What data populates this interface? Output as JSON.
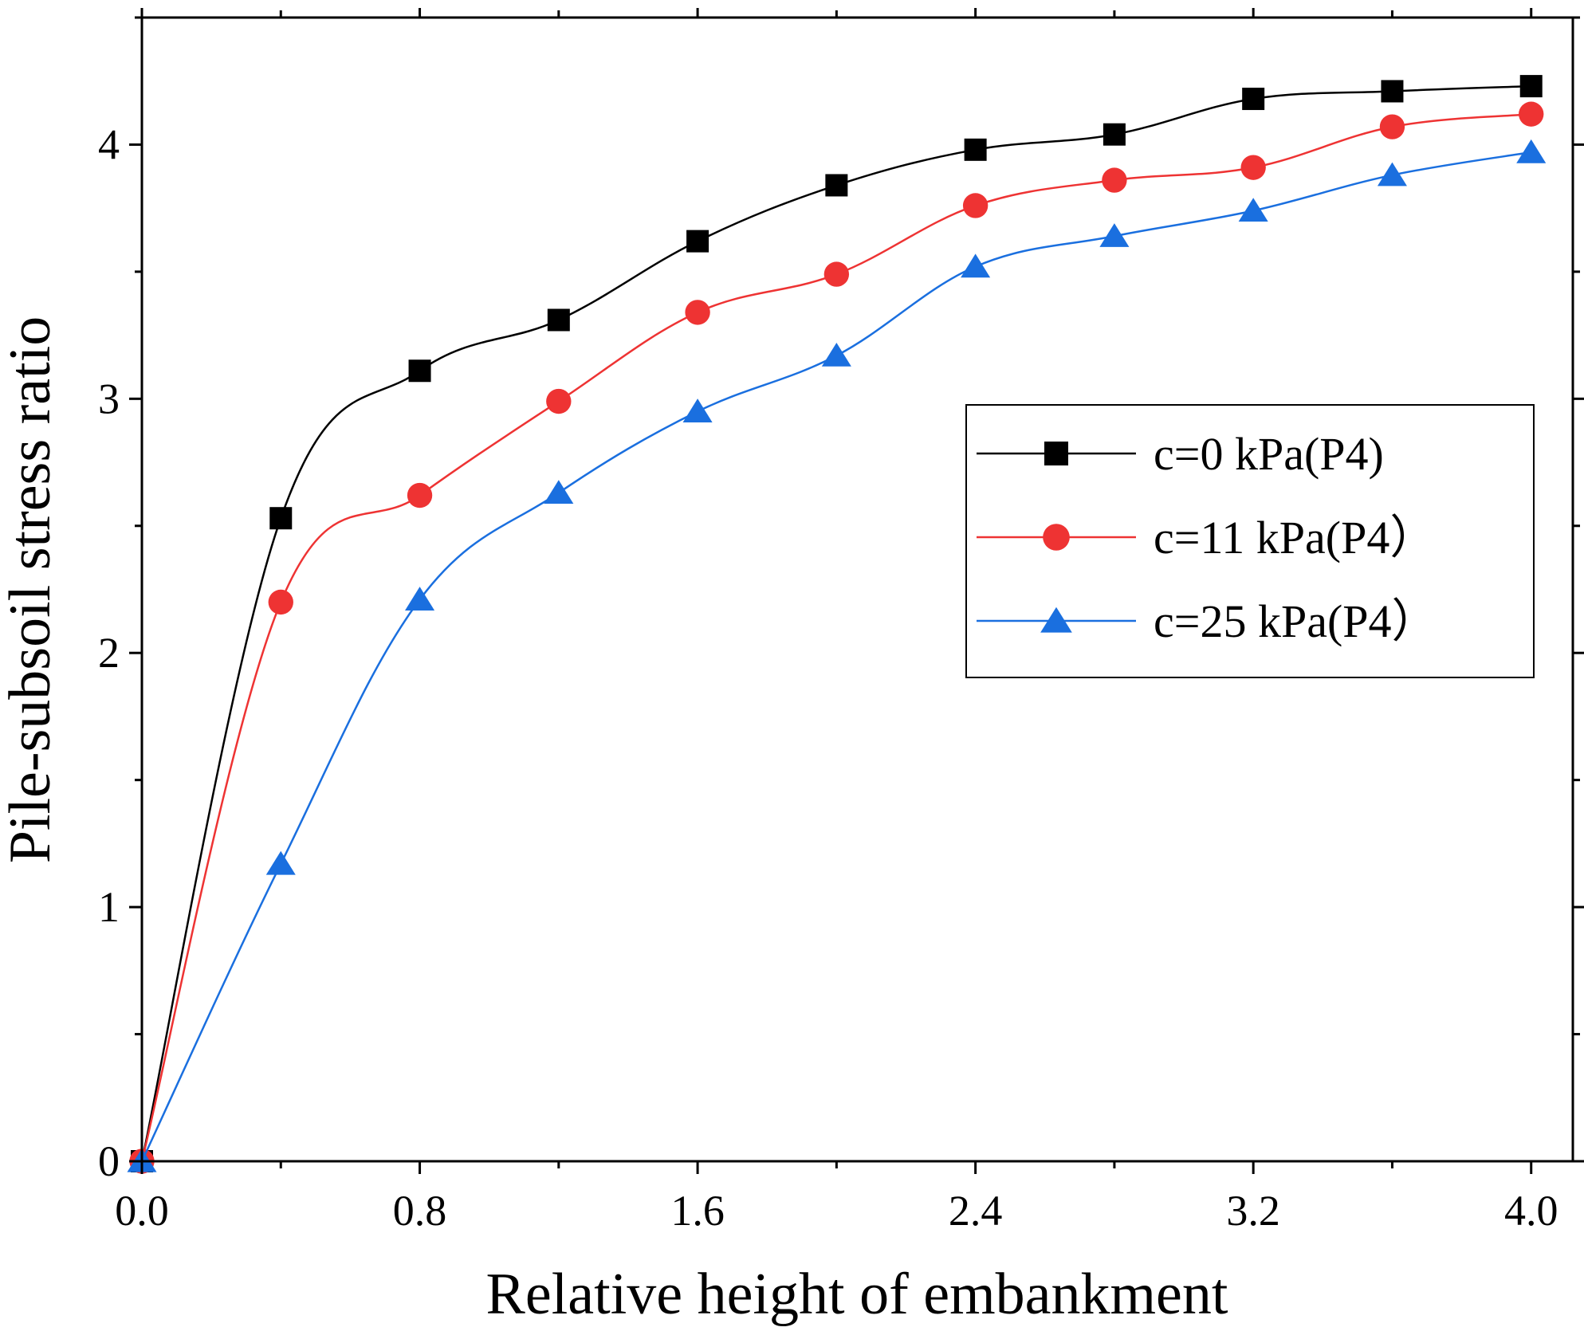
{
  "chart_data": {
    "type": "line",
    "title": "",
    "xlabel": "Relative height of embankment",
    "ylabel": "Pile-subsoil stress ratio",
    "xlim": [
      0.0,
      4.12
    ],
    "ylim": [
      0,
      4.5
    ],
    "xticks": [
      0.0,
      0.8,
      1.6,
      2.4,
      3.2,
      4.0
    ],
    "xtick_labels": [
      "0.0",
      "0.8",
      "1.6",
      "2.4",
      "3.2",
      "4.0"
    ],
    "yticks": [
      0,
      1,
      2,
      3,
      4
    ],
    "ytick_labels": [
      "0",
      "1",
      "2",
      "3",
      "4"
    ],
    "grid": false,
    "legend_position": "center-right",
    "x": [
      0.0,
      0.4,
      0.8,
      1.2,
      1.6,
      2.0,
      2.4,
      2.8,
      3.2,
      3.6,
      4.0
    ],
    "series": [
      {
        "name": "c=0 kPa(P4)",
        "color": "#000000",
        "marker": "square",
        "values": [
          0,
          2.53,
          3.11,
          3.31,
          3.62,
          3.84,
          3.98,
          4.04,
          4.18,
          4.21,
          4.23
        ]
      },
      {
        "name": "c=11 kPa(P4）",
        "color": "#ee3333",
        "marker": "circle",
        "values": [
          0,
          2.2,
          2.62,
          2.99,
          3.34,
          3.49,
          3.76,
          3.86,
          3.91,
          4.07,
          4.12
        ]
      },
      {
        "name": "c=25 kPa(P4）",
        "color": "#1a6fdf",
        "marker": "triangle",
        "values": [
          0,
          1.17,
          2.21,
          2.63,
          2.95,
          3.17,
          3.52,
          3.64,
          3.74,
          3.88,
          3.97
        ]
      }
    ]
  }
}
